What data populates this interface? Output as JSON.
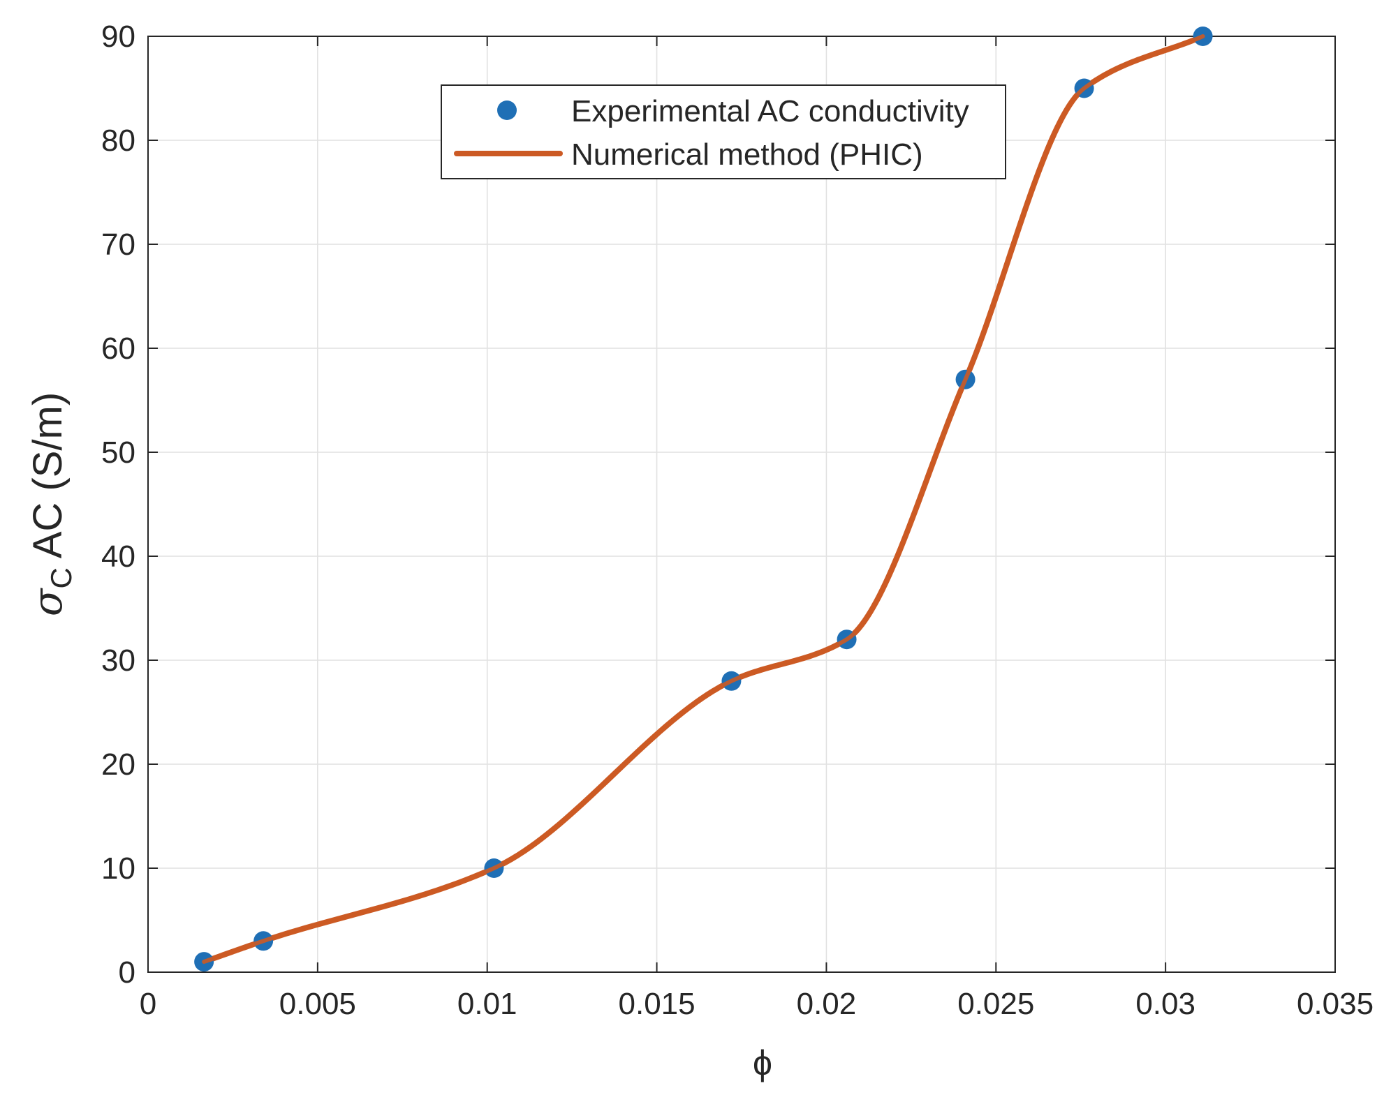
{
  "chart_data": {
    "type": "line",
    "title": "",
    "xlabel": "ϕ",
    "ylabel_main": "σ",
    "ylabel_sub": "C",
    "ylabel_rest": " AC (S/m)",
    "xlim": [
      0,
      0.035
    ],
    "ylim": [
      0,
      90
    ],
    "xticks": [
      0,
      0.005,
      0.01,
      0.015,
      0.02,
      0.025,
      0.03,
      0.035
    ],
    "xtick_labels": [
      "0",
      "0.005",
      "0.01",
      "0.015",
      "0.02",
      "0.025",
      "0.03",
      "0.035"
    ],
    "yticks": [
      0,
      10,
      20,
      30,
      40,
      50,
      60,
      70,
      80,
      90
    ],
    "ytick_labels": [
      "0",
      "10",
      "20",
      "30",
      "40",
      "50",
      "60",
      "70",
      "80",
      "90"
    ],
    "grid": true,
    "legend_position": "top-center",
    "series": [
      {
        "name": "Experimental AC conductivity",
        "kind": "scatter",
        "color": "#1f6fb5",
        "x": [
          0.00165,
          0.0034,
          0.0102,
          0.0172,
          0.0206,
          0.0241,
          0.0276,
          0.0311
        ],
        "y": [
          1,
          3,
          10,
          28,
          32,
          57,
          85,
          90
        ]
      },
      {
        "name": "Numerical method (PHIC)",
        "kind": "line",
        "color": "#cc5a24",
        "x": [
          0.00165,
          0.0034,
          0.0102,
          0.0172,
          0.0206,
          0.0241,
          0.0276,
          0.0311
        ],
        "y": [
          1,
          3,
          10,
          28,
          32,
          57,
          85,
          90
        ]
      }
    ]
  }
}
